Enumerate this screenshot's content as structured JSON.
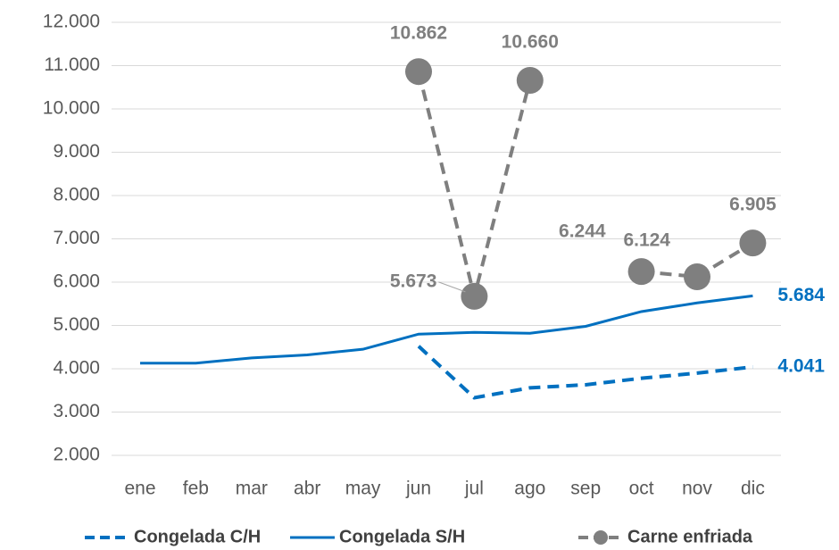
{
  "chart_data": {
    "type": "line",
    "categories": [
      "ene",
      "feb",
      "mar",
      "abr",
      "may",
      "jun",
      "jul",
      "ago",
      "sep",
      "oct",
      "nov",
      "dic"
    ],
    "ylim": [
      2000,
      12000
    ],
    "yticks": [
      {
        "value": 2000,
        "label": "2.000"
      },
      {
        "value": 3000,
        "label": "3.000"
      },
      {
        "value": 4000,
        "label": "4.000"
      },
      {
        "value": 5000,
        "label": "5.000"
      },
      {
        "value": 6000,
        "label": "6.000"
      },
      {
        "value": 7000,
        "label": "7.000"
      },
      {
        "value": 8000,
        "label": "8.000"
      },
      {
        "value": 9000,
        "label": "9.000"
      },
      {
        "value": 10000,
        "label": "10.000"
      },
      {
        "value": 11000,
        "label": "11.000"
      },
      {
        "value": 12000,
        "label": "12.000"
      }
    ],
    "grid": true,
    "legend": "bottom",
    "series": [
      {
        "name": "Congelada C/H",
        "color": "#0070c0",
        "style": "dashed",
        "marker": false,
        "values": [
          null,
          null,
          null,
          null,
          null,
          4520,
          3330,
          3560,
          3630,
          3780,
          3900,
          4041
        ],
        "value_labels": [
          null,
          null,
          null,
          null,
          null,
          null,
          null,
          null,
          null,
          null,
          null,
          "4.041"
        ]
      },
      {
        "name": "Congelada S/H",
        "color": "#0070c0",
        "style": "solid",
        "marker": false,
        "values": [
          4130,
          4130,
          4250,
          4320,
          4450,
          4800,
          4840,
          4820,
          4980,
          5320,
          5520,
          5684
        ],
        "value_labels": [
          null,
          null,
          null,
          null,
          null,
          null,
          null,
          null,
          null,
          null,
          null,
          "5.684"
        ]
      },
      {
        "name": "Carne enfriada",
        "color": "#7f7f7f",
        "style": "dashed",
        "marker": true,
        "values": [
          null,
          null,
          null,
          null,
          null,
          10862,
          5673,
          10660,
          null,
          6244,
          6124,
          6905
        ],
        "value_labels": [
          null,
          null,
          null,
          null,
          null,
          "10.862",
          "5.673",
          "10.660",
          null,
          "6.244",
          "6.124",
          "6.905"
        ]
      }
    ]
  }
}
